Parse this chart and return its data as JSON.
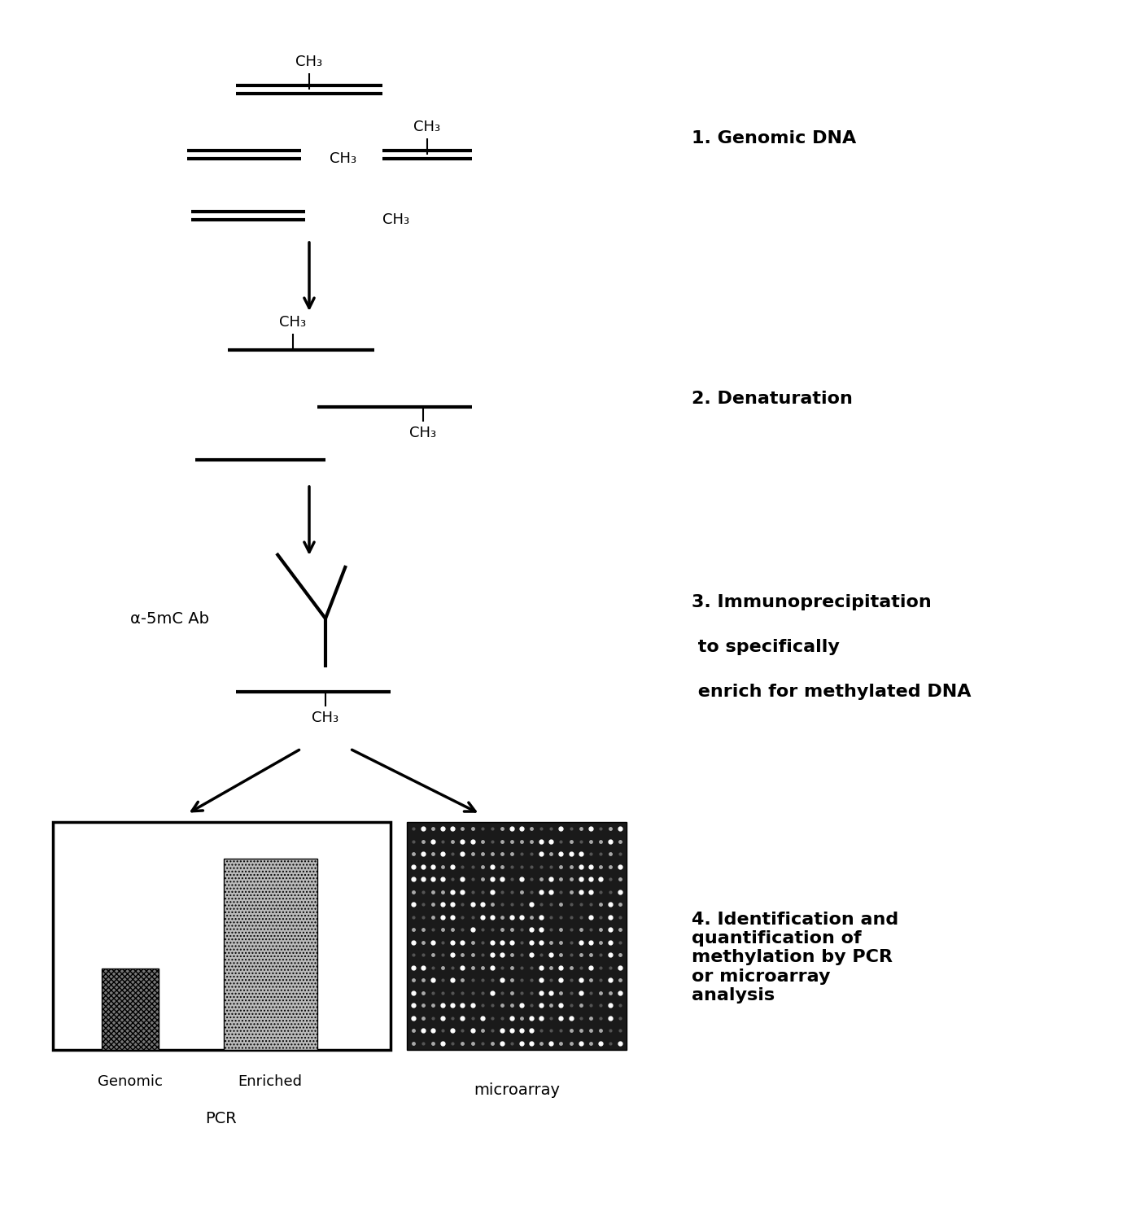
{
  "bg_color": "#ffffff",
  "text_color": "#000000",
  "fig_width": 14.01,
  "fig_height": 14.99,
  "step1_label": "1. Genomic DNA",
  "step2_label": "2. Denaturation",
  "step3_line1": "3. Immunoprecipitation",
  "step3_line2": " to specifically",
  "step3_line3": " enrich for methylated DNA",
  "step4_label": "4. Identification and\nquantification of\nmethylation by PCR\nor microarray\nanalysis",
  "ch3_label": "CH₃",
  "alpha5mC_label": "α-5mC Ab",
  "genomic_label": "Genomic",
  "enriched_label": "Enriched",
  "pcr_label": "PCR",
  "microarray_label": "microarray"
}
